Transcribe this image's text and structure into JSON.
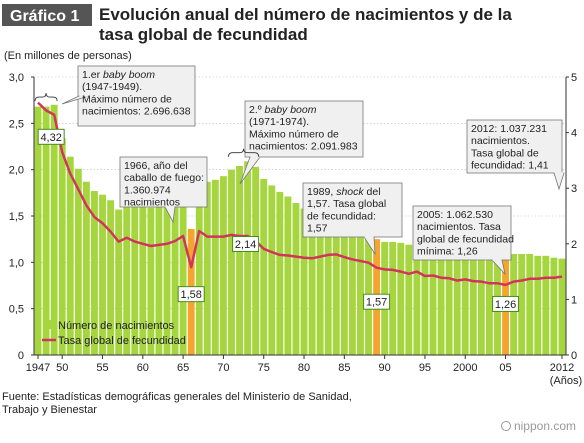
{
  "header": {
    "badge": "Gráfico 1",
    "title_line1": "Evolución anual del número de nacimientos y de la",
    "title_line2": "tasa global de fecundidad"
  },
  "footnote": {
    "line1": "Fuente: Estadísticas demográficas generales del Ministerio de Sanidad,",
    "line2": "Trabajo y Bienestar"
  },
  "logo": "nippon.com",
  "colors": {
    "bar": "#a5d63d",
    "highlight_bar": "#f4a52e",
    "line": "#d2355c",
    "text": "#222222",
    "callout_bg": "#f0f0f0",
    "callout_border": "#777777"
  },
  "chart_data": {
    "type": "bar",
    "unit_label": "(En millones de personas)",
    "x_unit_label": "(Años)",
    "left_axis": {
      "min": 0,
      "max": 3.0,
      "ticks": [
        "0",
        "0,5",
        "1,0",
        "1,5",
        "2,0",
        "2,5",
        "3,0"
      ]
    },
    "right_axis": {
      "min": 0,
      "max": 5,
      "ticks": [
        "0",
        "1",
        "2",
        "3",
        "4",
        "5"
      ]
    },
    "x_tick_labels": [
      {
        "year": 1947,
        "label": "1947"
      },
      {
        "year": 1950,
        "label": "50"
      },
      {
        "year": 1955,
        "label": "55"
      },
      {
        "year": 1960,
        "label": "60"
      },
      {
        "year": 1965,
        "label": "65"
      },
      {
        "year": 1970,
        "label": "70"
      },
      {
        "year": 1975,
        "label": "75"
      },
      {
        "year": 1980,
        "label": "80"
      },
      {
        "year": 1985,
        "label": "85"
      },
      {
        "year": 1990,
        "label": "90"
      },
      {
        "year": 1995,
        "label": "95"
      },
      {
        "year": 2000,
        "label": "2000"
      },
      {
        "year": 2005,
        "label": "05"
      },
      {
        "year": 2012,
        "label": "2012"
      }
    ],
    "years": [
      1947,
      1948,
      1949,
      1950,
      1951,
      1952,
      1953,
      1954,
      1955,
      1956,
      1957,
      1958,
      1959,
      1960,
      1961,
      1962,
      1963,
      1964,
      1965,
      1966,
      1967,
      1968,
      1969,
      1970,
      1971,
      1972,
      1973,
      1974,
      1975,
      1976,
      1977,
      1978,
      1979,
      1980,
      1981,
      1982,
      1983,
      1984,
      1985,
      1986,
      1987,
      1988,
      1989,
      1990,
      1991,
      1992,
      1993,
      1994,
      1995,
      1996,
      1997,
      1998,
      1999,
      2000,
      2001,
      2002,
      2003,
      2004,
      2005,
      2006,
      2007,
      2008,
      2009,
      2010,
      2011,
      2012
    ],
    "highlight_years": [
      1966,
      1989,
      2005
    ],
    "series": [
      {
        "name": "Número de nacimientos",
        "kind": "bar",
        "axis": "left",
        "values": [
          2.68,
          2.68,
          2.7,
          2.34,
          2.14,
          2.01,
          1.87,
          1.77,
          1.73,
          1.67,
          1.57,
          1.65,
          1.63,
          1.61,
          1.59,
          1.62,
          1.66,
          1.72,
          1.82,
          1.36,
          1.94,
          1.87,
          1.89,
          1.93,
          2.0,
          2.04,
          2.09,
          2.03,
          1.9,
          1.83,
          1.76,
          1.71,
          1.64,
          1.58,
          1.53,
          1.52,
          1.51,
          1.49,
          1.43,
          1.38,
          1.35,
          1.31,
          1.25,
          1.22,
          1.22,
          1.21,
          1.19,
          1.24,
          1.19,
          1.21,
          1.19,
          1.2,
          1.18,
          1.19,
          1.17,
          1.15,
          1.12,
          1.11,
          1.06,
          1.09,
          1.09,
          1.09,
          1.07,
          1.07,
          1.05,
          1.04
        ]
      },
      {
        "name": "Tasa global de fecundidad",
        "kind": "line",
        "axis": "right",
        "values": [
          4.54,
          4.4,
          4.32,
          3.65,
          3.26,
          2.98,
          2.69,
          2.48,
          2.37,
          2.22,
          2.04,
          2.11,
          2.04,
          2.0,
          1.96,
          1.98,
          2.0,
          2.05,
          2.14,
          1.58,
          2.23,
          2.13,
          2.13,
          2.13,
          2.16,
          2.14,
          2.14,
          2.05,
          1.91,
          1.85,
          1.8,
          1.79,
          1.77,
          1.75,
          1.74,
          1.77,
          1.8,
          1.81,
          1.76,
          1.72,
          1.69,
          1.66,
          1.57,
          1.54,
          1.53,
          1.5,
          1.46,
          1.5,
          1.42,
          1.43,
          1.39,
          1.38,
          1.34,
          1.36,
          1.33,
          1.32,
          1.29,
          1.29,
          1.26,
          1.32,
          1.34,
          1.37,
          1.37,
          1.39,
          1.39,
          1.41
        ]
      }
    ],
    "data_labels": [
      {
        "year": 1949,
        "value": 4.32,
        "text": "4,32"
      },
      {
        "year": 1966,
        "value": 1.58,
        "text": "1,58"
      },
      {
        "year": 1973,
        "value": 2.14,
        "text": "2,14"
      },
      {
        "year": 1989,
        "value": 1.57,
        "text": "1,57"
      },
      {
        "year": 2005,
        "value": 1.26,
        "text": "1,26"
      }
    ],
    "callouts": [
      {
        "lines": [
          "1.er baby boom",
          "(1947-1949).",
          "Máximo número de",
          "nacimientos: 2.696.638"
        ]
      },
      {
        "lines": [
          "2.º baby boom",
          "(1971-1974).",
          "Máximo número de",
          "nacimientos: 2.091.983"
        ]
      },
      {
        "lines": [
          "1966, año del",
          "caballo de fuego:",
          "1.360.974",
          "nacimientos"
        ]
      },
      {
        "lines": [
          "1989, shock del",
          "1,57. Tasa global",
          "de fecundidad:",
          "1,57"
        ]
      },
      {
        "lines": [
          "2005: 1.062.530",
          "nacimientos. Tasa",
          "global de fecundidad",
          "mínima: 1,26"
        ]
      },
      {
        "lines": [
          "2012: 1.037.231",
          "nacimientos.",
          "Tasa global de",
          "fecundidad: 1,41"
        ]
      }
    ]
  }
}
